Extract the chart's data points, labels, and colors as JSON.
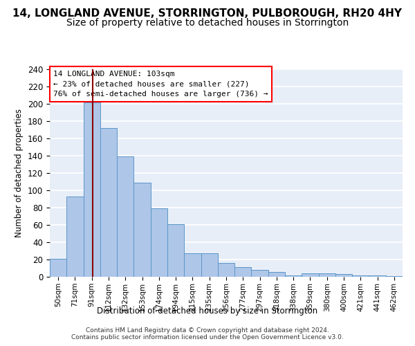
{
  "title": "14, LONGLAND AVENUE, STORRINGTON, PULBOROUGH, RH20 4HY",
  "subtitle": "Size of property relative to detached houses in Storrington",
  "xlabel": "Distribution of detached houses by size in Storrington",
  "ylabel": "Number of detached properties",
  "footer_line1": "Contains HM Land Registry data © Crown copyright and database right 2024.",
  "footer_line2": "Contains public sector information licensed under the Open Government Licence v3.0.",
  "bin_labels": [
    "50sqm",
    "71sqm",
    "91sqm",
    "112sqm",
    "132sqm",
    "153sqm",
    "174sqm",
    "194sqm",
    "215sqm",
    "235sqm",
    "256sqm",
    "277sqm",
    "297sqm",
    "318sqm",
    "338sqm",
    "359sqm",
    "380sqm",
    "400sqm",
    "421sqm",
    "441sqm",
    "462sqm"
  ],
  "bar_values": [
    21,
    93,
    202,
    172,
    139,
    109,
    79,
    61,
    27,
    27,
    16,
    11,
    8,
    6,
    2,
    4,
    4,
    3,
    2,
    2,
    1
  ],
  "bar_color": "#aec6e8",
  "bar_edge_color": "#5a96c8",
  "annotation_line1": "14 LONGLAND AVENUE: 103sqm",
  "annotation_line2": "← 23% of detached houses are smaller (227)",
  "annotation_line3": "76% of semi-detached houses are larger (736) →",
  "redline_x": 2.07,
  "ylim_max": 240,
  "yticks": [
    0,
    20,
    40,
    60,
    80,
    100,
    120,
    140,
    160,
    180,
    200,
    220,
    240
  ],
  "background_color": "#e8eef8",
  "grid_color": "white",
  "title_fontsize": 11,
  "subtitle_fontsize": 10,
  "annot_fontsize": 8
}
